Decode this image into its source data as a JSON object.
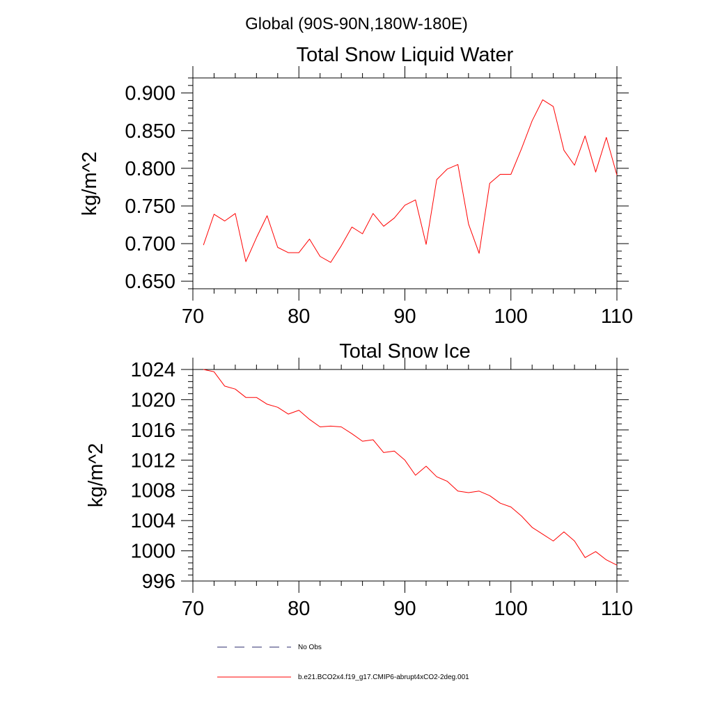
{
  "page_title": "Global (90S-90N,180W-180E)",
  "chart_data": [
    {
      "type": "line",
      "title": "Total Snow Liquid Water",
      "xlabel": "",
      "ylabel": "kg/m^2",
      "xlim": [
        70,
        110
      ],
      "ylim": [
        0.64,
        0.92
      ],
      "yticks": [
        0.65,
        0.7,
        0.75,
        0.8,
        0.85,
        0.9
      ],
      "ytick_labels": [
        "0.650",
        "0.700",
        "0.750",
        "0.800",
        "0.850",
        "0.900"
      ],
      "xticks": [
        70,
        80,
        90,
        100,
        110
      ],
      "xtick_labels": [
        "70",
        "80",
        "90",
        "100",
        "110"
      ],
      "grid": false,
      "series": [
        {
          "name": "b.e21.BCO2x4.f19_g17.CMIP6-abrupt4xCO2-2deg.001",
          "color": "#ff0000",
          "x": [
            71,
            72,
            73,
            74,
            75,
            76,
            77,
            78,
            79,
            80,
            81,
            82,
            83,
            84,
            85,
            86,
            87,
            88,
            89,
            90,
            91,
            92,
            93,
            94,
            95,
            96,
            97,
            98,
            99,
            100,
            101,
            102,
            103,
            104,
            105,
            106,
            107,
            108,
            109,
            110
          ],
          "y": [
            0.698,
            0.739,
            0.73,
            0.74,
            0.676,
            0.708,
            0.737,
            0.695,
            0.688,
            0.688,
            0.706,
            0.683,
            0.675,
            0.697,
            0.722,
            0.713,
            0.74,
            0.723,
            0.734,
            0.751,
            0.758,
            0.699,
            0.785,
            0.799,
            0.805,
            0.726,
            0.687,
            0.78,
            0.792,
            0.792,
            0.826,
            0.863,
            0.891,
            0.882,
            0.824,
            0.804,
            0.843,
            0.795,
            0.841,
            0.791
          ]
        }
      ]
    },
    {
      "type": "line",
      "title": "Total Snow Ice",
      "xlabel": "",
      "ylabel": "kg/m^2",
      "xlim": [
        70,
        110
      ],
      "ylim": [
        996,
        1024
      ],
      "yticks": [
        996,
        1000,
        1004,
        1008,
        1012,
        1016,
        1020,
        1024
      ],
      "ytick_labels": [
        "996",
        "1000",
        "1004",
        "1008",
        "1012",
        "1016",
        "1020",
        "1024"
      ],
      "xticks": [
        70,
        80,
        90,
        100,
        110
      ],
      "xtick_labels": [
        "70",
        "80",
        "90",
        "100",
        "110"
      ],
      "grid": false,
      "series": [
        {
          "name": "b.e21.BCO2x4.f19_g17.CMIP6-abrupt4xCO2-2deg.001",
          "color": "#ff0000",
          "x": [
            71,
            72,
            73,
            74,
            75,
            76,
            77,
            78,
            79,
            80,
            81,
            82,
            83,
            84,
            85,
            86,
            87,
            88,
            89,
            90,
            91,
            92,
            93,
            94,
            95,
            96,
            97,
            98,
            99,
            100,
            101,
            102,
            103,
            104,
            105,
            106,
            107,
            108,
            109,
            110
          ],
          "y": [
            1024.0,
            1023.7,
            1021.8,
            1021.4,
            1020.3,
            1020.3,
            1019.4,
            1019.0,
            1018.1,
            1018.6,
            1017.4,
            1016.4,
            1016.5,
            1016.4,
            1015.5,
            1014.5,
            1014.7,
            1013.0,
            1013.2,
            1012.0,
            1010.0,
            1011.2,
            1009.8,
            1009.2,
            1007.9,
            1007.7,
            1007.9,
            1007.3,
            1006.3,
            1005.8,
            1004.6,
            1003.1,
            1002.2,
            1001.3,
            1002.5,
            1001.3,
            999.1,
            999.9,
            998.8,
            998.1
          ]
        }
      ]
    }
  ],
  "legend": {
    "placement": "bottom",
    "items": [
      {
        "label": "No Obs",
        "color": "#2b2b6e",
        "style": "dashed"
      },
      {
        "label": "b.e21.BCO2x4.f19_g17.CMIP6-abrupt4xCO2-2deg.001",
        "color": "#ff0000",
        "style": "solid"
      }
    ]
  }
}
